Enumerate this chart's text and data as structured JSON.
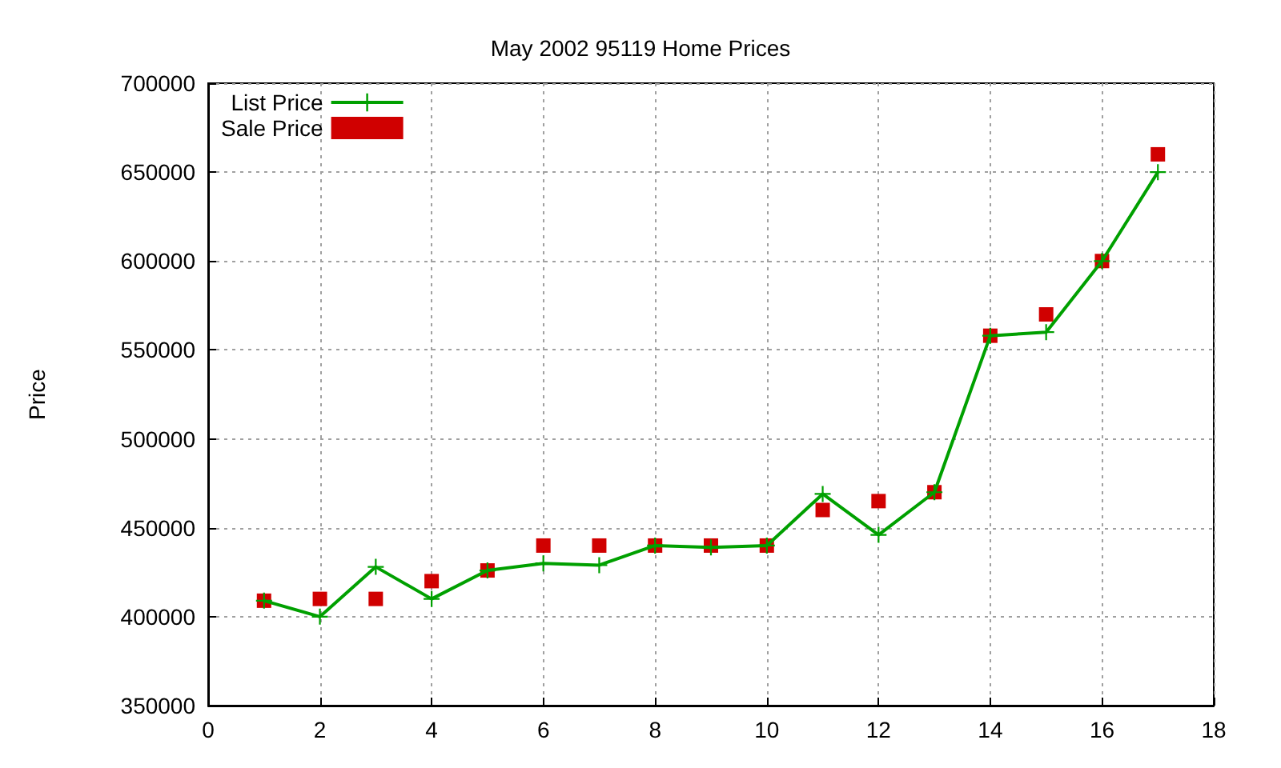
{
  "chart_data": {
    "type": "line",
    "title": "May 2002 95119 Home Prices",
    "ylabel": "Price",
    "x": [
      1,
      2,
      3,
      4,
      5,
      6,
      7,
      8,
      9,
      10,
      11,
      12,
      13,
      14,
      15,
      16,
      17
    ],
    "series": [
      {
        "name": "List Price",
        "color": "#00a000",
        "marker": "cross",
        "values": [
          409000,
          400000,
          428000,
          410000,
          426000,
          430000,
          429000,
          440000,
          439000,
          440000,
          469000,
          446000,
          470000,
          558000,
          560000,
          600000,
          650000
        ]
      },
      {
        "name": "Sale Price",
        "type": "scatter",
        "color": "#d00000",
        "marker": "square",
        "values": [
          409000,
          410000,
          410000,
          420000,
          426000,
          440000,
          440000,
          440000,
          440000,
          440000,
          460000,
          465000,
          470000,
          558000,
          570000,
          600000,
          660000
        ]
      }
    ],
    "xlim": [
      0,
      18
    ],
    "xticks": [
      0,
      2,
      4,
      6,
      8,
      10,
      12,
      14,
      16,
      18
    ],
    "ylim": [
      350000,
      700000
    ],
    "yticks": [
      350000,
      400000,
      450000,
      500000,
      550000,
      600000,
      650000,
      700000
    ],
    "grid": true,
    "legend": "top left"
  }
}
